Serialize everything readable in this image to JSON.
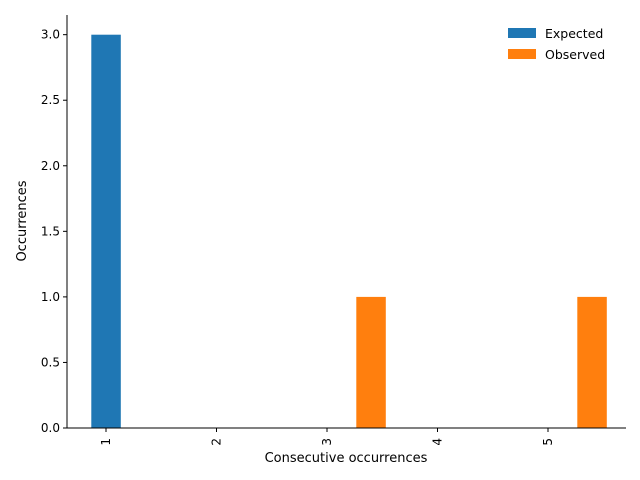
{
  "chart_data": {
    "type": "bar",
    "categories": [
      "1",
      "2",
      "3",
      "4",
      "5"
    ],
    "series": [
      {
        "name": "Expected",
        "values": [
          3,
          0,
          0,
          0,
          0
        ],
        "color": "#1f77b4"
      },
      {
        "name": "Observed",
        "values": [
          0,
          0,
          1,
          0,
          1
        ],
        "color": "#ff7f0e"
      }
    ],
    "xlabel": "Consecutive occurrences",
    "ylabel": "Occurrences",
    "ylim": [
      0,
      3.15
    ],
    "yticks": [
      0.0,
      0.5,
      1.0,
      1.5,
      2.0,
      2.5,
      3.0
    ],
    "ytick_labels": [
      "0.0",
      "0.5",
      "1.0",
      "1.5",
      "2.0",
      "2.5",
      "3.0"
    ],
    "xtick_rotation": "vertical",
    "grid": false,
    "legend_position": "top-right",
    "title": ""
  }
}
